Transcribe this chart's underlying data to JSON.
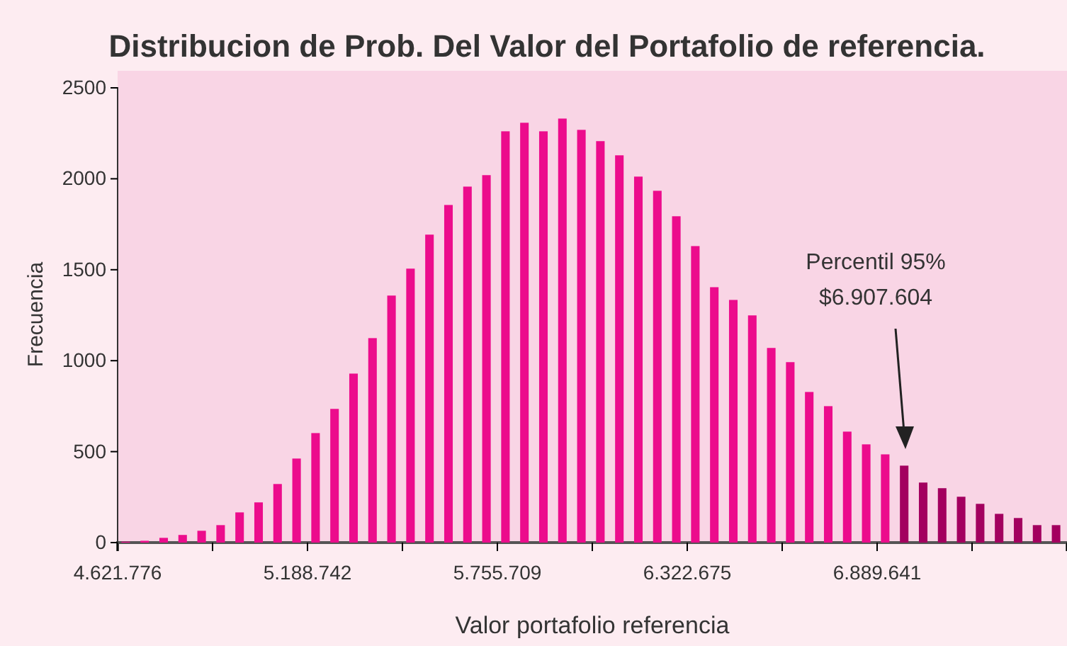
{
  "chart_data": {
    "type": "histogram",
    "title": "Distribucion de Prob. Del Valor del Portafolio de referencia.",
    "xlabel": "Valor portafolio referencia",
    "ylabel": "Frecuencia",
    "bins": [
      4621776,
      4678473,
      4735169,
      4791866,
      4848562,
      4905259,
      4961956,
      5018652,
      5075349,
      5132045,
      5188742,
      5245439,
      5302135,
      5358832,
      5415528,
      5472225,
      5528922,
      5585618,
      5642315,
      5699011,
      5755708,
      5812405,
      5869101,
      5925798,
      5982494,
      6039191,
      6095888,
      6152584,
      6209281,
      6265977,
      6322674,
      6379371,
      6436067,
      6492764,
      6549460,
      6606157,
      6662854,
      6719550,
      6776247,
      6832943,
      6889640,
      6946337,
      7003033,
      7059730,
      7116426,
      7173123,
      7229820,
      7286516,
      7343213,
      7399909,
      7456606
    ],
    "values": [
      5,
      10,
      26,
      42,
      65,
      96,
      166,
      221,
      322,
      462,
      602,
      735,
      929,
      1124,
      1358,
      1506,
      1693,
      1856,
      1957,
      2020,
      2261,
      2308,
      2261,
      2331,
      2269,
      2207,
      2129,
      2012,
      1934,
      1794,
      1630,
      1404,
      1334,
      1249,
      1070,
      992,
      828,
      750,
      610,
      540,
      485,
      423,
      330,
      299,
      252,
      213,
      158,
      135,
      96,
      96
    ],
    "colors": [
      "#ec0c8c",
      "#ec0c8c",
      "#ec0c8c",
      "#ec0c8c",
      "#ec0c8c",
      "#ec0c8c",
      "#ec0c8c",
      "#ec0c8c",
      "#ec0c8c",
      "#ec0c8c",
      "#ec0c8c",
      "#ec0c8c",
      "#ec0c8c",
      "#ec0c8c",
      "#ec0c8c",
      "#ec0c8c",
      "#ec0c8c",
      "#ec0c8c",
      "#ec0c8c",
      "#ec0c8c",
      "#ec0c8c",
      "#ec0c8c",
      "#ec0c8c",
      "#ec0c8c",
      "#ec0c8c",
      "#ec0c8c",
      "#ec0c8c",
      "#ec0c8c",
      "#ec0c8c",
      "#ec0c8c",
      "#ec0c8c",
      "#ec0c8c",
      "#ec0c8c",
      "#ec0c8c",
      "#ec0c8c",
      "#ec0c8c",
      "#ec0c8c",
      "#ec0c8c",
      "#ec0c8c",
      "#ec0c8c",
      "#ec0c8c",
      "#a3005f",
      "#a3005f",
      "#a3005f",
      "#a3005f",
      "#a3005f",
      "#a3005f",
      "#a3005f",
      "#a3005f",
      "#a3005f"
    ],
    "xlim": [
      4621776,
      7456606
    ],
    "xticks": [
      {
        "value": 4621776,
        "label": "4.621.776"
      },
      {
        "value": 4905259,
        "label": null
      },
      {
        "value": 5188742,
        "label": "5.188.742"
      },
      {
        "value": 5472225,
        "label": null
      },
      {
        "value": 5755709,
        "label": "5.755.709"
      },
      {
        "value": 6039192,
        "label": null
      },
      {
        "value": 6322675,
        "label": "6.322.675"
      },
      {
        "value": 6606158,
        "label": null
      },
      {
        "value": 6889641,
        "label": "6.889.641"
      },
      {
        "value": 7173124,
        "label": null
      },
      {
        "value": 7456606,
        "label": null
      }
    ],
    "ylim": [
      0,
      2500
    ],
    "yticks": [
      0,
      500,
      1000,
      1500,
      2000,
      2500
    ],
    "annotations": [
      "Percentil 95%\n$6.907.604"
    ]
  }
}
